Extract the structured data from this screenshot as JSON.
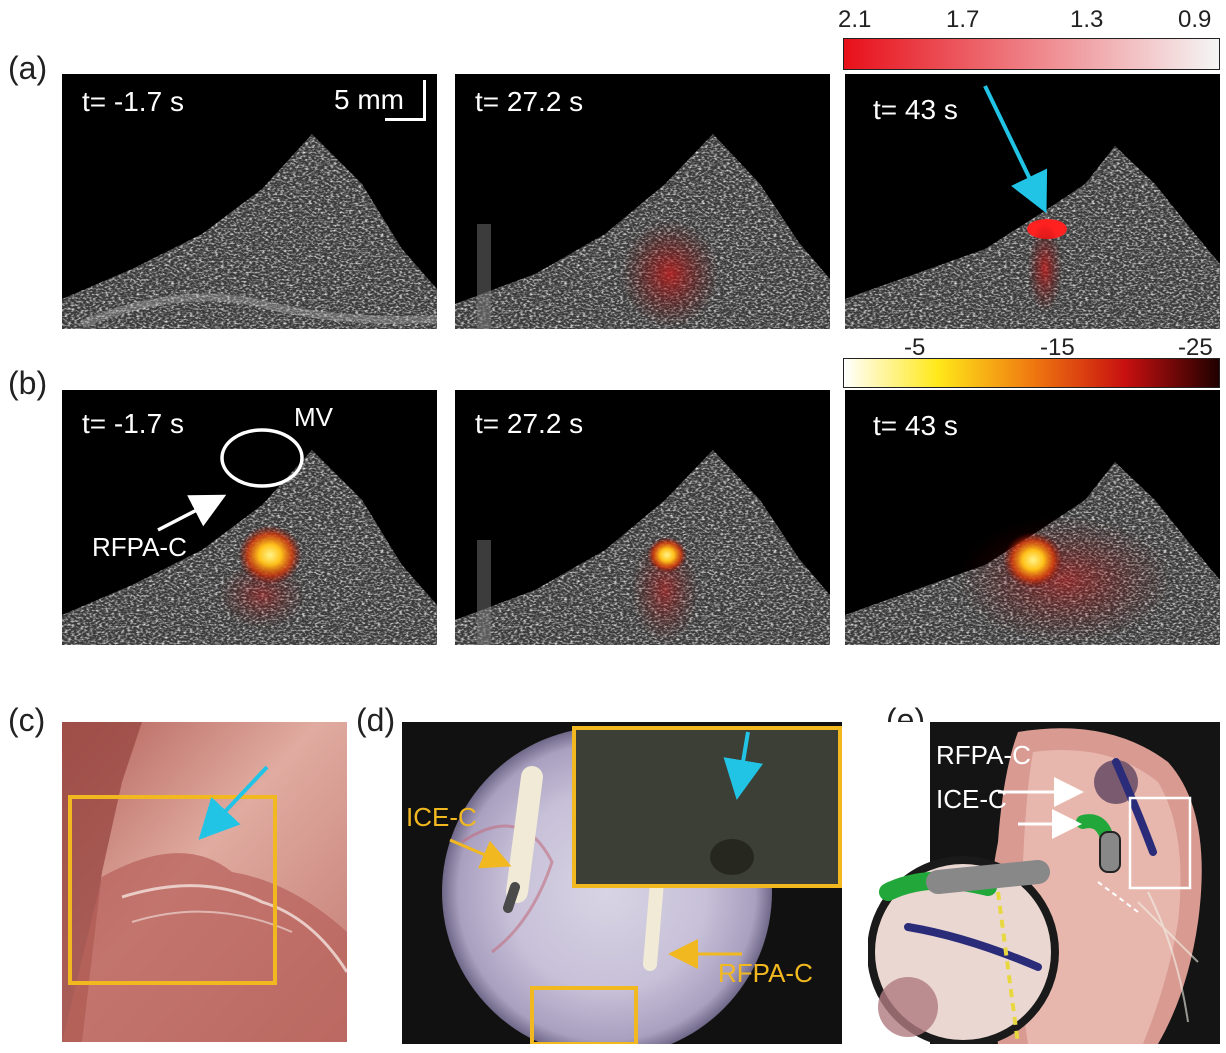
{
  "panel_labels": {
    "a": "(a)",
    "b": "(b)",
    "c": "(c)",
    "d": "(d)",
    "e": "(e)"
  },
  "row_a": {
    "times": [
      "t= -1.7 s",
      "t= 27.2 s",
      "t= 43 s"
    ],
    "scalebar_label": "5 mm",
    "colorbar": {
      "ticks": [
        "2.1",
        "1.7",
        "1.3",
        "0.9"
      ],
      "colors": [
        "#e8101a",
        "#f5f5f5"
      ]
    }
  },
  "row_b": {
    "times": [
      "t= -1.7 s",
      "t= 27.2 s",
      "t= 43 s"
    ],
    "annotations": {
      "mv": "MV",
      "rfpa": "RFPA-C"
    },
    "colorbar": {
      "ticks": [
        "-5",
        "-15",
        "-25"
      ],
      "colors": [
        "#ffffff",
        "#ffe81a",
        "#f07a10",
        "#c81010",
        "#200000"
      ]
    }
  },
  "panel_d": {
    "ice_label": "ICE-C",
    "rfpa_label": "RFPA-C"
  },
  "panel_e": {
    "rfpa_label": "RFPA-C",
    "ice_label": "ICE-C"
  },
  "colors": {
    "highlight_box": "#f2b820",
    "arrow_cyan": "#22c4e6",
    "text_white": "#ffffff"
  }
}
